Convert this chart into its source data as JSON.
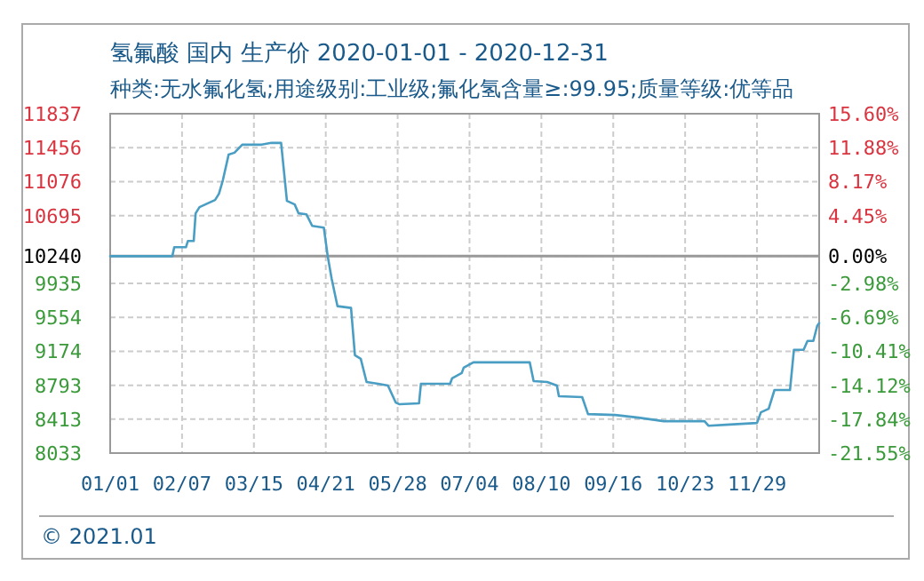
{
  "chart_data": {
    "type": "line",
    "title": "氢氟酸 国内 生产价 2020-01-01 - 2020-12-31",
    "subtitle": "种类:无水氟化氢;用途级别:工业级;氟化氢含量≥:99.95;质量等级:优等品",
    "annotations": [
      "© 2021.01"
    ],
    "x": [
      "2020-01-01",
      "2020-02-02",
      "2020-02-03",
      "2020-02-09",
      "2020-02-10",
      "2020-02-13",
      "2020-02-14",
      "2020-02-16",
      "2020-02-19",
      "2020-02-24",
      "2020-02-26",
      "2020-02-28",
      "2020-03-02",
      "2020-03-05",
      "2020-03-09",
      "2020-03-19",
      "2020-03-24",
      "2020-03-29",
      "2020-04-01",
      "2020-04-05",
      "2020-04-07",
      "2020-04-11",
      "2020-04-14",
      "2020-04-20",
      "2020-04-22",
      "2020-04-24",
      "2020-04-27",
      "2020-05-04",
      "2020-05-06",
      "2020-05-09",
      "2020-05-12",
      "2020-05-18",
      "2020-05-23",
      "2020-05-27",
      "2020-05-29",
      "2020-06-08",
      "2020-06-09",
      "2020-06-24",
      "2020-06-25",
      "2020-06-30",
      "2020-07-01",
      "2020-07-06",
      "2020-08-04",
      "2020-08-06",
      "2020-08-13",
      "2020-08-18",
      "2020-08-19",
      "2020-08-31",
      "2020-09-03",
      "2020-09-17",
      "2020-09-29",
      "2020-10-12",
      "2020-11-02",
      "2020-11-04",
      "2020-11-13",
      "2020-11-29",
      "2020-12-01",
      "2020-12-05",
      "2020-12-08",
      "2020-12-16",
      "2020-12-18",
      "2020-12-23",
      "2020-12-25",
      "2020-12-28",
      "2020-12-30",
      "2020-12-31"
    ],
    "series": [
      {
        "color": "#4a9ec4",
        "values": [
          10240,
          10240,
          10340,
          10340,
          10410,
          10410,
          10720,
          10790,
          10820,
          10870,
          10940,
          11090,
          11380,
          11400,
          11490,
          11490,
          11510,
          11510,
          10860,
          10820,
          10720,
          10710,
          10580,
          10560,
          10240,
          9990,
          9680,
          9660,
          9130,
          9090,
          8830,
          8810,
          8790,
          8600,
          8580,
          8590,
          8810,
          8810,
          8870,
          8930,
          8990,
          9050,
          9050,
          8840,
          8830,
          8790,
          8670,
          8660,
          8470,
          8460,
          8430,
          8390,
          8390,
          8340,
          8350,
          8370,
          8490,
          8530,
          8740,
          8740,
          9190,
          9190,
          9290,
          9290,
          9460,
          9490
        ]
      }
    ],
    "xlim": [
      "2020-01-01",
      "2020-12-31"
    ],
    "xticks": [
      {
        "value": "2020-01-01",
        "label": "01/01"
      },
      {
        "value": "2020-02-07",
        "label": "02/07"
      },
      {
        "value": "2020-03-15",
        "label": "03/15"
      },
      {
        "value": "2020-04-21",
        "label": "04/21"
      },
      {
        "value": "2020-05-28",
        "label": "05/28"
      },
      {
        "value": "2020-07-04",
        "label": "07/04"
      },
      {
        "value": "2020-08-10",
        "label": "08/10"
      },
      {
        "value": "2020-09-16",
        "label": "09/16"
      },
      {
        "value": "2020-10-23",
        "label": "10/23"
      },
      {
        "value": "2020-11-29",
        "label": "11/29"
      }
    ],
    "ylim": [
      8033,
      11837
    ],
    "yticks": [
      11837,
      11456,
      11076,
      10695,
      10240,
      9935,
      9554,
      9174,
      8793,
      8413,
      8033
    ],
    "y2lim": [
      -21.55,
      15.6
    ],
    "y2ticks": [
      {
        "value": 15.6,
        "label": "15.60%"
      },
      {
        "value": 11.88,
        "label": "11.88%"
      },
      {
        "value": 8.17,
        "label": "8.17%"
      },
      {
        "value": 4.45,
        "label": "4.45%"
      },
      {
        "value": 0,
        "label": "0.00%"
      },
      {
        "value": -2.98,
        "label": "-2.98%"
      },
      {
        "value": -6.69,
        "label": "-6.69%"
      },
      {
        "value": -10.41,
        "label": "-10.41%"
      },
      {
        "value": -14.12,
        "label": "-14.12%"
      },
      {
        "value": -17.84,
        "label": "-17.84%"
      },
      {
        "value": -21.55,
        "label": "-21.55%"
      }
    ],
    "ref_lines": [
      {
        "axis": "y",
        "value": 10240,
        "color": "#999999",
        "line_style": "solid"
      }
    ],
    "grid": true
  }
}
